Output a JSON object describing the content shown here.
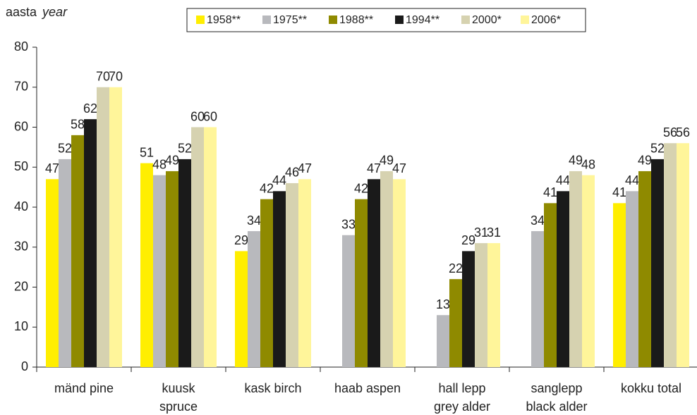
{
  "chart_data": {
    "type": "bar",
    "y_label": "aasta",
    "y_label_en": "year",
    "categories": [
      "mänd pine",
      "kuusk\nspruce",
      "kask birch",
      "haab aspen",
      "hall lepp\ngrey alder",
      "sanglepp\nblack alder",
      "kokku total"
    ],
    "series": [
      {
        "name": "1958**",
        "color": "#ffee00",
        "values": [
          47,
          51,
          29,
          null,
          null,
          null,
          41
        ]
      },
      {
        "name": "1975**",
        "color": "#b8b9bd",
        "values": [
          52,
          48,
          34,
          33,
          13,
          34,
          44
        ]
      },
      {
        "name": "1988**",
        "color": "#8f8a00",
        "values": [
          58,
          49,
          42,
          42,
          22,
          41,
          49
        ]
      },
      {
        "name": "1994**",
        "color": "#1a1a1a",
        "values": [
          62,
          52,
          44,
          47,
          29,
          44,
          52
        ]
      },
      {
        "name": "2000*",
        "color": "#d6d2b0",
        "values": [
          70,
          60,
          46,
          49,
          31,
          49,
          56
        ]
      },
      {
        "name": "2006*",
        "color": "#fff59a",
        "values": [
          70,
          60,
          47,
          47,
          31,
          48,
          56
        ]
      }
    ],
    "ylim": [
      0,
      80
    ],
    "yticks": [
      0,
      10,
      20,
      30,
      40,
      50,
      60,
      70,
      80
    ],
    "grid": false,
    "legend": "top"
  }
}
